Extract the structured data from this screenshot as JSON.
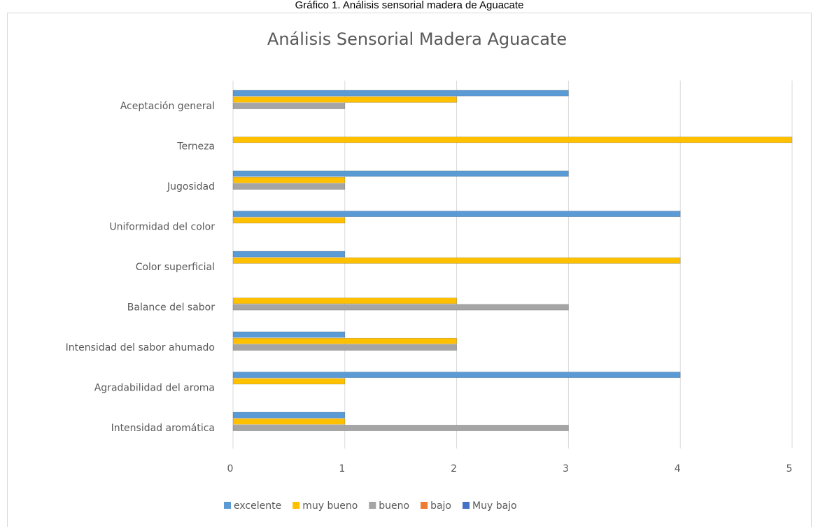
{
  "chart_data": {
    "type": "bar",
    "orientation": "horizontal",
    "caption": "Gráfico 1. Análisis sensorial madera de Aguacate",
    "title": "Análisis Sensorial Madera Aguacate",
    "categories": [
      "Intensidad aromática",
      "Agradabilidad del aroma",
      "Intensidad del sabor ahumado",
      "Balance del sabor",
      "Color superficial",
      "Uniformidad del color",
      "Jugosidad",
      "Terneza",
      "Aceptación general"
    ],
    "series": [
      {
        "name": "excelente",
        "color": "#5b9bd5",
        "values": [
          1,
          4,
          1,
          0,
          1,
          4,
          3,
          0,
          3
        ]
      },
      {
        "name": "muy bueno",
        "color": "#ffc000",
        "values": [
          1,
          1,
          2,
          2,
          4,
          1,
          1,
          5,
          2
        ]
      },
      {
        "name": "bueno",
        "color": "#a5a5a5",
        "values": [
          3,
          0,
          2,
          3,
          0,
          0,
          1,
          0,
          1
        ]
      },
      {
        "name": "bajo",
        "color": "#ed7d31",
        "values": [
          0,
          0,
          0,
          0,
          0,
          0,
          0,
          0,
          0
        ]
      },
      {
        "name": "Muy bajo",
        "color": "#4472c4",
        "values": [
          0,
          0,
          0,
          0,
          0,
          0,
          0,
          0,
          0
        ]
      }
    ],
    "xlim": [
      0,
      5
    ],
    "xticks": [
      0,
      1,
      2,
      3,
      4,
      5
    ],
    "grid": true,
    "legend": "bottom"
  }
}
